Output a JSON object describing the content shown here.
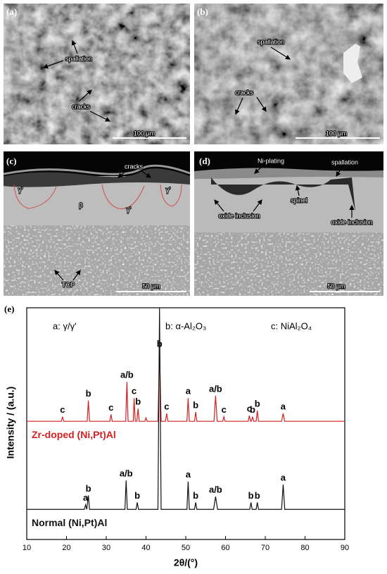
{
  "panels": [
    {
      "label": "(a)",
      "annotations": [
        "spallation",
        "cracks"
      ],
      "scale_bar": "100 μm"
    },
    {
      "label": "(b)",
      "annotations": [
        "spallation",
        "cracks"
      ],
      "scale_bar": "100 μm"
    },
    {
      "label": "(c)",
      "annotations": [
        "cracks",
        "γ'",
        "β",
        "γ'",
        "γ'",
        "TCP"
      ],
      "scale_bar": "50 μm"
    },
    {
      "label": "(d)",
      "annotations": [
        "Ni-plating",
        "spallation",
        "spinel",
        "oxide inclusion",
        "oxide inclusion"
      ],
      "scale_bar": "50 μm"
    }
  ],
  "chart_data": {
    "type": "line",
    "panel_label": "(e)",
    "phase_key": [
      "a: γ/γ'",
      "b: α-Al₂O₃",
      "c: NiAl₂O₄"
    ],
    "x_label": "2θ/(°)",
    "y_label": "Intensity / (a.u.)",
    "xlim": [
      10,
      90
    ],
    "xticks": [
      10,
      20,
      30,
      40,
      50,
      60,
      70,
      80,
      90
    ],
    "ylim": [
      0,
      100
    ],
    "series": [
      {
        "name": "Zr-doped (Ni,Pt)Al",
        "color": "#d42020",
        "x": [
          10,
          18.7,
          19,
          19.3,
          25.2,
          25.5,
          25.8,
          30.9,
          31.2,
          31.5,
          34.9,
          35.2,
          35.5,
          36.8,
          37,
          37.3,
          37.7,
          38,
          38.3,
          39.7,
          40,
          40.3,
          43,
          43.4,
          43.8,
          44.9,
          45.2,
          45.5,
          50.3,
          50.6,
          50.9,
          52.2,
          52.5,
          52.8,
          57.1,
          57.5,
          57.9,
          59.3,
          59.6,
          59.9,
          65.7,
          66,
          66.3,
          66.5,
          66.8,
          67.1,
          67.7,
          68,
          68.3,
          74.1,
          74.5,
          74.9,
          90
        ],
        "values": [
          51,
          51,
          53,
          51,
          51,
          60,
          51,
          51,
          54,
          51,
          51,
          68,
          51,
          51,
          61,
          51,
          51,
          56.5,
          51,
          51,
          52.5,
          51,
          51,
          81.5,
          51,
          51,
          54.4,
          51,
          51,
          61,
          51,
          51,
          55,
          51,
          51,
          62,
          51,
          51,
          53,
          51,
          51,
          53.5,
          51,
          51,
          53,
          51,
          51,
          55.6,
          51,
          51,
          54.4,
          51,
          51
        ],
        "peak_labels": [
          {
            "text": "c",
            "x": 19
          },
          {
            "text": "b",
            "x": 25.5
          },
          {
            "text": "c",
            "x": 31.2
          },
          {
            "text": "a/b",
            "x": 35.2
          },
          {
            "text": "c",
            "x": 37
          },
          {
            "text": "b",
            "x": 38
          },
          {
            "text": "b",
            "x": 43.4
          },
          {
            "text": "c",
            "x": 45.2
          },
          {
            "text": "a",
            "x": 50.6
          },
          {
            "text": "b",
            "x": 52.5
          },
          {
            "text": "a/b",
            "x": 57.5
          },
          {
            "text": "c",
            "x": 59.6
          },
          {
            "text": "c",
            "x": 66
          },
          {
            "text": "b",
            "x": 66.8
          },
          {
            "text": "b",
            "x": 68
          },
          {
            "text": "a",
            "x": 74.5
          }
        ]
      },
      {
        "name": "Normal (Ni,Pt)Al",
        "color": "#111111",
        "x": [
          10,
          24.5,
          24.8,
          25.1,
          25.5,
          25.8,
          34.7,
          35,
          35.3,
          37.5,
          37.8,
          38.1,
          43,
          43.4,
          43.8,
          50.3,
          50.6,
          50.9,
          52.2,
          52.5,
          52.8,
          57,
          57.5,
          58,
          66.1,
          66.4,
          66.7,
          67.7,
          68,
          68.3,
          74.1,
          74.5,
          74.9,
          90
        ],
        "values": [
          13,
          13,
          15,
          13,
          19,
          13,
          13,
          25.5,
          13,
          13,
          16,
          13,
          13,
          100,
          13,
          13,
          25,
          13,
          13,
          16,
          13,
          13,
          18.5,
          13,
          13,
          16,
          13,
          13,
          16,
          13,
          13,
          23.7,
          13,
          13
        ],
        "peak_labels": [
          {
            "text": "a",
            "x": 24.8
          },
          {
            "text": "b",
            "x": 25.5
          },
          {
            "text": "a/b",
            "x": 35
          },
          {
            "text": "b",
            "x": 37.8
          },
          {
            "text": "a",
            "x": 50.6
          },
          {
            "text": "b",
            "x": 52.5
          },
          {
            "text": "a/b",
            "x": 57.5
          },
          {
            "text": "b",
            "x": 66.4
          },
          {
            "text": "b",
            "x": 68
          },
          {
            "text": "a",
            "x": 74.5
          }
        ]
      }
    ]
  }
}
